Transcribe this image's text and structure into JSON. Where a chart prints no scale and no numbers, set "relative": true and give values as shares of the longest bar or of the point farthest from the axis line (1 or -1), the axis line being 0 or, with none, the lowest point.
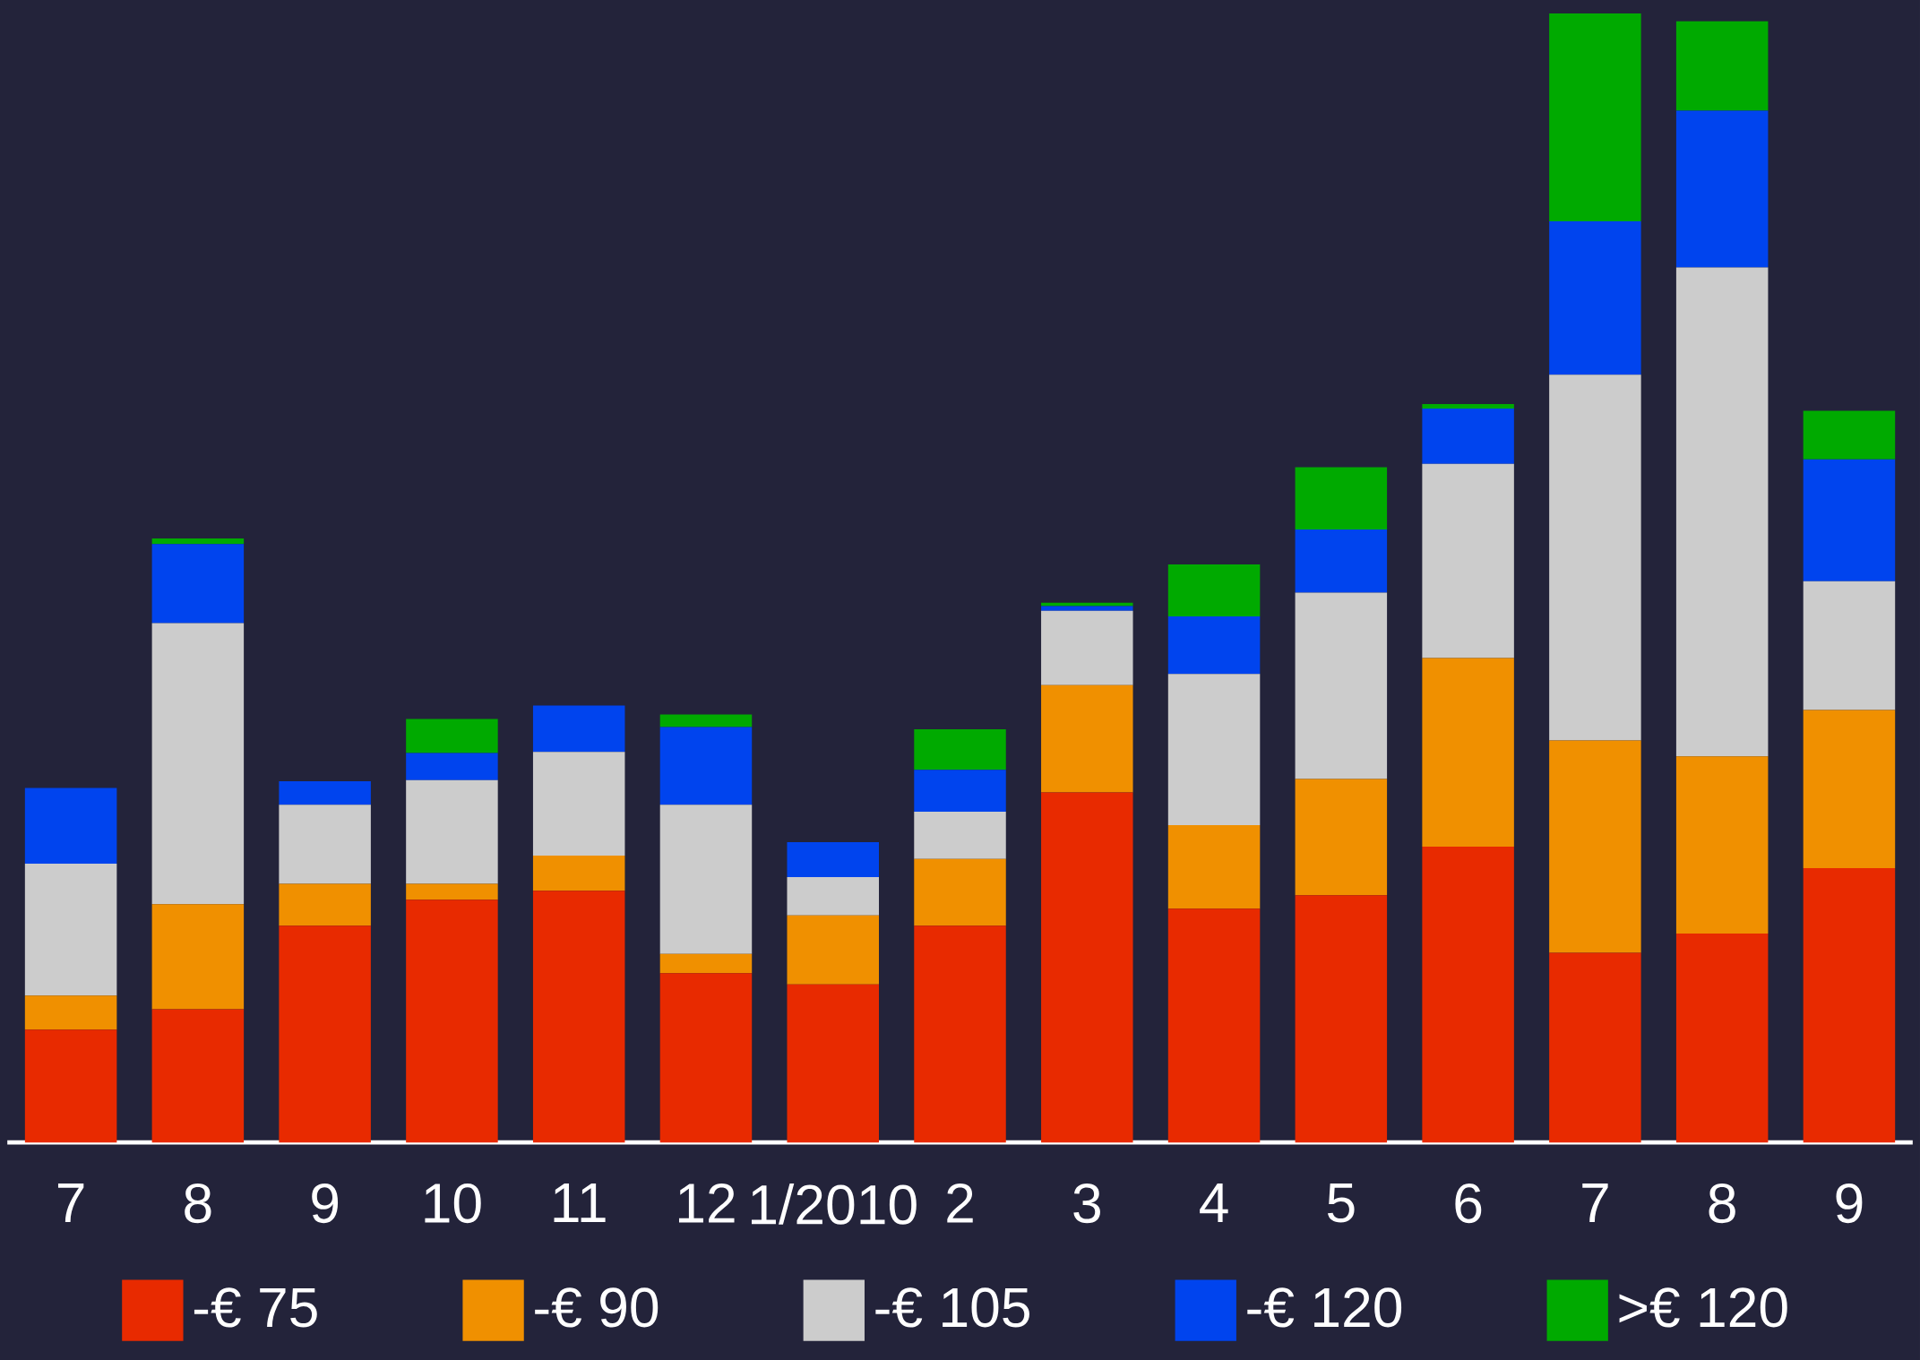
{
  "chart_data": {
    "type": "bar",
    "stacked": true,
    "relative": true,
    "legend": "bottom",
    "categories": [
      "7",
      "8",
      "9",
      "10",
      "11",
      "12",
      "1/2010",
      "2",
      "3",
      "4",
      "5",
      "6",
      "7",
      "8",
      "9"
    ],
    "series": [
      {
        "name": "-€ 75",
        "color": "#e82a00",
        "values": [
          0.1,
          0.118,
          0.192,
          0.215,
          0.223,
          0.15,
          0.14,
          0.192,
          0.31,
          0.207,
          0.219,
          0.262,
          0.168,
          0.185,
          0.243
        ]
      },
      {
        "name": "-€ 90",
        "color": "#f09000",
        "values": [
          0.03,
          0.093,
          0.037,
          0.014,
          0.031,
          0.017,
          0.061,
          0.059,
          0.095,
          0.074,
          0.103,
          0.167,
          0.188,
          0.157,
          0.14
        ]
      },
      {
        "name": "-€ 105",
        "color": "#cccccc",
        "values": [
          0.117,
          0.249,
          0.07,
          0.092,
          0.092,
          0.132,
          0.034,
          0.042,
          0.066,
          0.134,
          0.165,
          0.172,
          0.324,
          0.433,
          0.114
        ]
      },
      {
        "name": "-€ 120",
        "color": "#0044ee",
        "values": [
          0.067,
          0.07,
          0.021,
          0.024,
          0.041,
          0.069,
          0.031,
          0.037,
          0.004,
          0.051,
          0.056,
          0.049,
          0.136,
          0.139,
          0.108
        ]
      },
      {
        "name": ">€ 120",
        "color": "#00aa00",
        "values": [
          0,
          0.005,
          0,
          0.03,
          0,
          0.011,
          0,
          0.036,
          0.003,
          0.046,
          0.055,
          0.004,
          0.184,
          0.079,
          0.043
        ]
      }
    ]
  }
}
